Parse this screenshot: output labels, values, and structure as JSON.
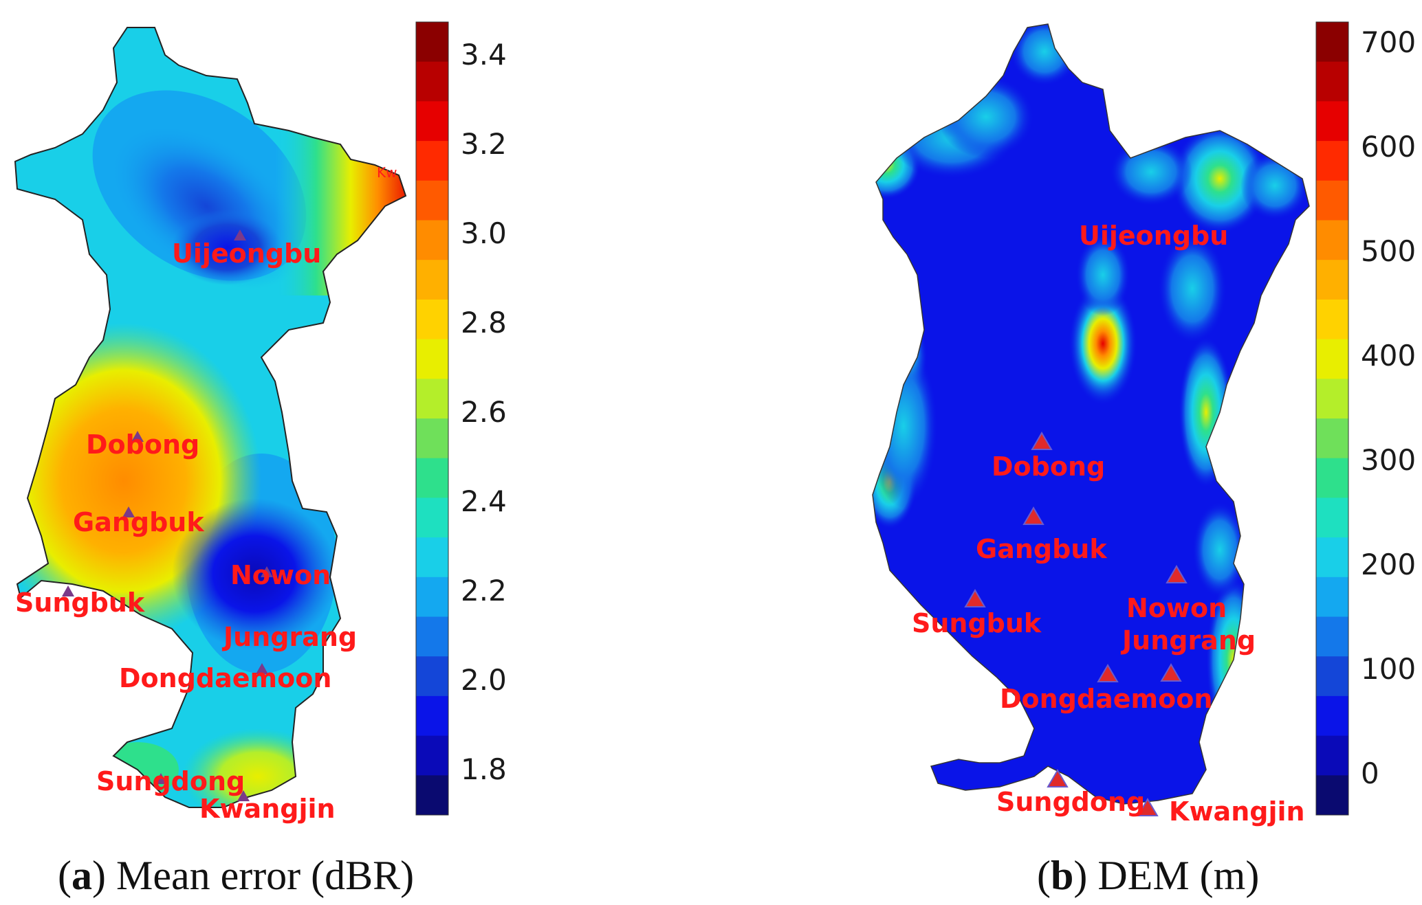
{
  "figure": {
    "panels": [
      {
        "id": "a",
        "caption": {
          "open": "(",
          "letter": "a",
          "rest": ") Mean error (dBR)"
        },
        "colorbar": {
          "colors": [
            "#8b0000",
            "#b80000",
            "#e60000",
            "#ff2a00",
            "#ff5a00",
            "#ff8c00",
            "#ffb000",
            "#ffd200",
            "#e8ee00",
            "#b4ee2a",
            "#6fe05a",
            "#2ee08c",
            "#1ee0c0",
            "#19cfe8",
            "#14a8f0",
            "#1478ea",
            "#1446d8",
            "#0a14e8",
            "#0a0ab8",
            "#0a0a70"
          ],
          "tick_labels": [
            "3.4",
            "3.2",
            "3.0",
            "2.8",
            "2.6",
            "2.4",
            "2.2",
            "2.0",
            "1.8"
          ]
        },
        "sites": [
          "Uijeongbu",
          "Dobong",
          "Gangbuk",
          "Sungbuk",
          "Nowon",
          "Jungrang",
          "Dongdaemoon",
          "Sungdong",
          "Kwangjin"
        ],
        "extra_marks": [
          "Kw"
        ]
      },
      {
        "id": "b",
        "caption": {
          "open": "(",
          "letter": "b",
          "rest": ") DEM (m)"
        },
        "colorbar": {
          "colors": [
            "#8b0000",
            "#b80000",
            "#e60000",
            "#ff2a00",
            "#ff5a00",
            "#ff8c00",
            "#ffb000",
            "#ffd200",
            "#e8ee00",
            "#b4ee2a",
            "#6fe05a",
            "#2ee08c",
            "#1ee0c0",
            "#19cfe8",
            "#14a8f0",
            "#1478ea",
            "#1446d8",
            "#0a14e8",
            "#0a0ab8",
            "#0a0a70"
          ],
          "tick_labels": [
            "700",
            "600",
            "500",
            "400",
            "300",
            "200",
            "100",
            "0"
          ]
        },
        "sites": [
          "Uijeongbu",
          "Dobong",
          "Gangbuk",
          "Sungbuk",
          "Nowon",
          "Jungrang",
          "Dongdaemoon",
          "Sungdong",
          "Kwangjin"
        ]
      }
    ]
  }
}
